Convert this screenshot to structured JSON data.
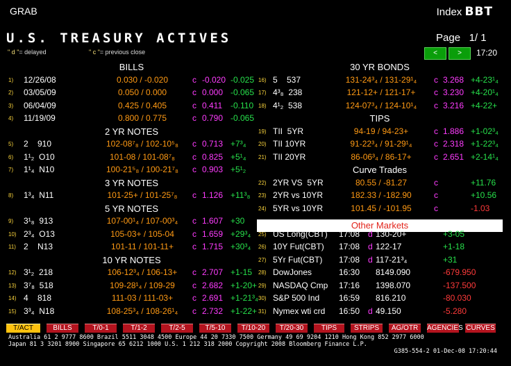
{
  "header": {
    "left": "GRAB",
    "index_label": "Index",
    "index_code": "BBT"
  },
  "title": "U.S. TREASURY ACTIVES",
  "page": {
    "label": "Page",
    "value": "1/ 1"
  },
  "legend": {
    "d_mark": "\" d \"",
    "d_text": "= delayed",
    "c_mark": "\" c \"",
    "c_text": "= previous close"
  },
  "nav": {
    "prev": "<",
    "next": ">"
  },
  "time": "17:20",
  "left": [
    {
      "section": "BILLS"
    },
    {
      "n": "1)",
      "name": "12/26/08",
      "price": "0.030 / -0.020",
      "flag": "c",
      "close": "-0.020",
      "chg": "-0.025",
      "chg_color": "g"
    },
    {
      "n": "2)",
      "name": "03/05/09",
      "price": "0.050 / 0.000",
      "flag": "c",
      "close": "0.000",
      "chg": "-0.065",
      "chg_color": "g"
    },
    {
      "n": "3)",
      "name": "06/04/09",
      "price": "0.425 / 0.405",
      "flag": "c",
      "close": "0.411",
      "chg": "-0.110",
      "chg_color": "g"
    },
    {
      "n": "4)",
      "name": "11/19/09",
      "price": "0.800 / 0.775",
      "flag": "c",
      "close": "0.790",
      "chg": "-0.065",
      "chg_color": "g"
    },
    {
      "section": "2 YR NOTES"
    },
    {
      "n": "5)",
      "name": "2    910",
      "price": "102-08⁷₈ / 102-10⁵₈",
      "flag": "c",
      "close": "0.713",
      "chg": "+7³₄",
      "chg_color": "g"
    },
    {
      "n": "6)",
      "name": "1¹₂  O10",
      "price": "101-08 / 101-08⁷₈",
      "flag": "c",
      "close": "0.825",
      "chg": "+5¹₄",
      "chg_color": "g"
    },
    {
      "n": "7)",
      "name": "1¹₄  N10",
      "price": "100-21⁵₈ / 100-21⁷₈",
      "flag": "c",
      "close": "0.903",
      "chg": "+5¹₂",
      "chg_color": "g"
    },
    {
      "section": "3 YR NOTES"
    },
    {
      "n": "8)",
      "name": "1³₄  N11",
      "price": "101-25+ / 101-25⁷₈",
      "flag": "c",
      "close": "1.126",
      "chg": "+11³₈",
      "chg_color": "g"
    },
    {
      "section": "5 YR NOTES"
    },
    {
      "n": "9)",
      "name": "3¹₈  913",
      "price": "107-00¹₄ / 107-00³₄",
      "flag": "c",
      "close": "1.607",
      "chg": "+30",
      "chg_color": "g"
    },
    {
      "n": "10)",
      "name": "2³₄  O13",
      "price": "105-03+ / 105-04",
      "flag": "c",
      "close": "1.659",
      "chg": "+29³₄",
      "chg_color": "g"
    },
    {
      "n": "11)",
      "name": "2    N13",
      "price": "101-11 / 101-11+",
      "flag": "c",
      "close": "1.715",
      "chg": "+30³₄",
      "chg_color": "g"
    },
    {
      "section": "10 YR NOTES"
    },
    {
      "n": "12)",
      "name": "3¹₂  218",
      "price": "106-12³₄ / 106-13+",
      "flag": "c",
      "close": "2.707",
      "chg": "+1-15",
      "chg_color": "g"
    },
    {
      "n": "13)",
      "name": "3⁷₈  518",
      "price": "109-28¹₄ / 109-29",
      "flag": "c",
      "close": "2.682",
      "chg": "+1-20+",
      "chg_color": "g"
    },
    {
      "n": "14)",
      "name": "4    818",
      "price": "111-03 / 111-03+",
      "flag": "c",
      "close": "2.691",
      "chg": "+1-21³₄",
      "chg_color": "g"
    },
    {
      "n": "15)",
      "name": "3³₄  N18",
      "price": "108-25³₄ / 108-26¹₄",
      "flag": "c",
      "close": "2.732",
      "chg": "+1-22+",
      "chg_color": "g"
    }
  ],
  "right": [
    {
      "section": "30 YR BONDS"
    },
    {
      "n": "16)",
      "name": "5    537",
      "price": "131-24³₄ / 131-29¹₄",
      "flag": "c",
      "close": "3.268",
      "chg": "+4-23¹₄",
      "chg_color": "g"
    },
    {
      "n": "17)",
      "name": "4³₈  238",
      "price": "121-12+ / 121-17+",
      "flag": "c",
      "close": "3.230",
      "chg": "+4-20¹₄",
      "chg_color": "g"
    },
    {
      "n": "18)",
      "name": "4¹₂  538",
      "price": "124-07³₄ / 124-10¹₄",
      "flag": "c",
      "close": "3.216",
      "chg": "+4-22+",
      "chg_color": "g"
    },
    {
      "section": "TIPS"
    },
    {
      "n": "19)",
      "name": "TII  5YR",
      "price": "94-19 / 94-23+",
      "flag": "c",
      "close": "1.886",
      "chg": "+1-02³₄",
      "chg_color": "g"
    },
    {
      "n": "20)",
      "name": "TII 10YR",
      "price": "91-22³₄ / 91-29¹₄",
      "flag": "c",
      "close": "2.318",
      "chg": "+1-22³₄",
      "chg_color": "g"
    },
    {
      "n": "21)",
      "name": "TII 20YR",
      "price": "86-06³₄ / 86-17+",
      "flag": "c",
      "close": "2.651",
      "chg": "+2-14¹₄",
      "chg_color": "g"
    },
    {
      "section": "Curve Trades"
    },
    {
      "n": "22)",
      "name": "2YR VS  5YR",
      "price": "80.55 / -81.27",
      "flag": "c",
      "close": "",
      "chg": "+11.76",
      "chg_color": "g"
    },
    {
      "n": "23)",
      "name": "2YR vs 10YR",
      "price": "182.33 / -182.90",
      "flag": "c",
      "close": "",
      "chg": "+10.56",
      "chg_color": "g"
    },
    {
      "n": "24)",
      "name": "5YR vs 10YR",
      "price": "101.45 / -101.95",
      "flag": "c",
      "close": "",
      "chg": "-1.03",
      "chg_color": "r"
    },
    {
      "other": "Other Markets"
    },
    {
      "n": "25)",
      "name": "US Long(CBT)",
      "time": "17:08",
      "flag": "d",
      "price": "130-20+",
      "chg": "+3-05",
      "chg_color": "g"
    },
    {
      "n": "26)",
      "name": "10Y Fut(CBT)",
      "time": "17:08",
      "flag": "d",
      "price": "122-17",
      "chg": "+1-18",
      "chg_color": "g"
    },
    {
      "n": "27)",
      "name": "5Yr Fut(CBT)",
      "time": "17:08",
      "flag": "d",
      "price": "117-21³₄",
      "chg": "+31",
      "chg_color": "g"
    },
    {
      "n": "28)",
      "name": "DowJones",
      "time": "16:30",
      "flag": "",
      "price": "8149.090",
      "chg": "-679.950",
      "chg_color": "r"
    },
    {
      "n": "29)",
      "name": "NASDAQ Cmp",
      "time": "17:16",
      "flag": "",
      "price": "1398.070",
      "chg": "-137.500",
      "chg_color": "r"
    },
    {
      "n": "30)",
      "name": "S&P 500 Ind",
      "time": "16:59",
      "flag": "",
      "price": "816.210",
      "chg": "-80.030",
      "chg_color": "r"
    },
    {
      "n": "31)",
      "name": "Nymex wti crd",
      "time": "16:50",
      "flag": "d",
      "price": "49.150",
      "chg": "-5.280",
      "chg_color": "r"
    }
  ],
  "tabs": [
    "T/ACT",
    "BILLS",
    "T/0-1",
    "T/1-2",
    "T/2-5",
    "T/5-10",
    "T/10-20",
    "T/20-30",
    "TIPS",
    "STRIPS",
    "AG/OTR",
    "AGENCIES",
    "CURVES"
  ],
  "footer": [
    "Australia 61 2 9777 8600 Brazil 5511 3048 4500 Europe 44 20 7330 7500 Germany 49 69 9204 1210 Hong Kong 852 2977 6000",
    "Japan 81 3 3201 8900        Singapore 65 6212 1000        U.S. 1 212 318 2000        Copyright 2008 Bloomberg Finance L.P.",
    "G385-554-2 01-Dec-08 17:20:44"
  ]
}
